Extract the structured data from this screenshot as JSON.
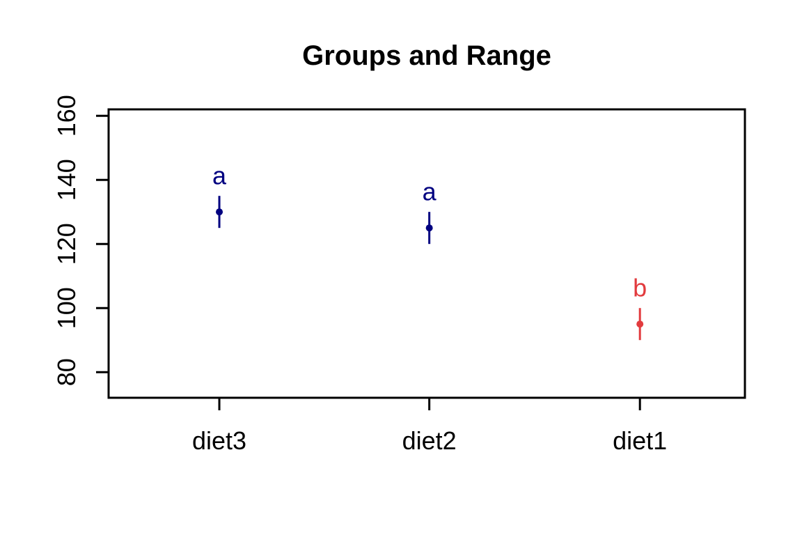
{
  "title": "Groups and Range",
  "colors": {
    "group_letter_a": "#000080",
    "group_letter_b": "#E23B3E",
    "axis": "#000000",
    "background": "#FFFFFF"
  },
  "chart_data": {
    "type": "scatter",
    "subtype": "point-range",
    "title": "Groups and Range",
    "xlabel": "",
    "ylabel": "",
    "categories": [
      "diet3",
      "diet2",
      "diet1"
    ],
    "groups": [
      {
        "category": "diet3",
        "letter": "a",
        "mean": 130,
        "range_min": 125,
        "range_max": 135,
        "color": "#000080"
      },
      {
        "category": "diet2",
        "letter": "a",
        "mean": 125,
        "range_min": 120,
        "range_max": 130,
        "color": "#000080"
      },
      {
        "category": "diet1",
        "letter": "b",
        "mean": 95,
        "range_min": 90,
        "range_max": 100,
        "color": "#E23B3E"
      }
    ],
    "y_axis": {
      "ticks": [
        80,
        100,
        120,
        140,
        160
      ],
      "range": [
        72,
        162
      ]
    },
    "letter_offset_units": 6,
    "grid": false,
    "legend": false
  }
}
